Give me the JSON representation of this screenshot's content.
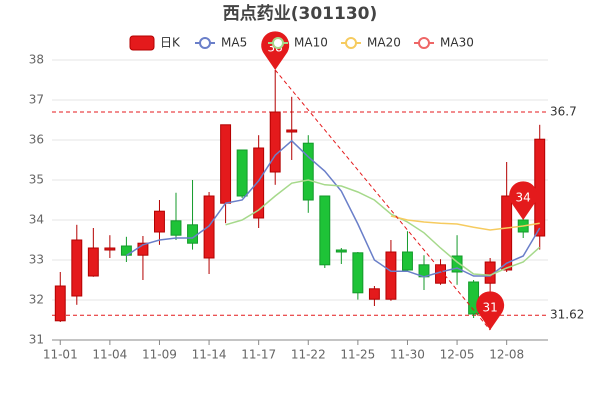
{
  "chart_data": {
    "type": "candlestick",
    "title": "西点药业(301130)",
    "categories": [
      "11-01",
      null,
      null,
      "11-04",
      null,
      null,
      "11-09",
      null,
      null,
      "11-14",
      null,
      null,
      "11-17",
      null,
      null,
      "11-22",
      null,
      null,
      "11-25",
      null,
      null,
      "11-30",
      null,
      null,
      "12-05",
      null,
      null,
      "12-08",
      null,
      null
    ],
    "candle_name": "日K",
    "up_color": "#e41a1c",
    "down_color": "#1ec337",
    "open": [
      31.48,
      32.1,
      32.6,
      33.25,
      33.35,
      33.12,
      33.7,
      33.98,
      33.88,
      33.05,
      34.42,
      35.75,
      34.05,
      35.2,
      36.2,
      35.92,
      34.6,
      33.25,
      33.18,
      32.02,
      32.02,
      33.2,
      32.88,
      32.42,
      33.1,
      32.45,
      32.42,
      32.75,
      34.0,
      33.6
    ],
    "high": [
      32.7,
      33.88,
      33.8,
      33.62,
      33.58,
      33.6,
      34.5,
      34.68,
      35.0,
      34.7,
      36.38,
      35.76,
      36.12,
      37.75,
      37.08,
      36.12,
      34.61,
      33.3,
      33.2,
      32.35,
      33.5,
      33.72,
      33.12,
      33.02,
      33.62,
      32.5,
      33.05,
      35.45,
      34.15,
      36.38
    ],
    "low": [
      31.45,
      31.88,
      32.58,
      33.05,
      32.95,
      32.5,
      33.38,
      33.5,
      33.26,
      32.65,
      33.92,
      34.55,
      33.8,
      34.88,
      35.5,
      34.18,
      32.8,
      32.9,
      32.01,
      31.85,
      31.98,
      32.7,
      32.25,
      32.38,
      32.38,
      31.55,
      31.25,
      32.7,
      33.55,
      33.26
    ],
    "close": [
      32.35,
      33.5,
      33.3,
      33.3,
      33.12,
      33.42,
      34.22,
      33.62,
      33.42,
      34.6,
      36.38,
      34.6,
      35.8,
      36.7,
      36.25,
      34.5,
      32.88,
      33.2,
      32.18,
      32.28,
      33.2,
      32.75,
      32.58,
      32.88,
      32.7,
      31.65,
      32.95,
      34.6,
      33.7,
      36.02
    ],
    "series": [
      {
        "name": "MA5",
        "color": "#6a7fc9",
        "values": [
          null,
          null,
          null,
          null,
          33.11,
          33.38,
          33.5,
          33.55,
          33.55,
          33.85,
          34.42,
          34.5,
          34.98,
          35.62,
          35.98,
          35.58,
          35.22,
          34.72,
          33.9,
          33.0,
          32.72,
          32.72,
          32.58,
          32.7,
          32.8,
          32.6,
          32.6,
          32.92,
          33.1,
          33.8
        ]
      },
      {
        "name": "MA10",
        "color": "#a6d98b",
        "values": [
          null,
          null,
          null,
          null,
          null,
          null,
          null,
          null,
          null,
          null,
          33.88,
          34.0,
          34.25,
          34.6,
          34.92,
          35.0,
          34.88,
          34.85,
          34.7,
          34.5,
          34.15,
          33.95,
          33.68,
          33.3,
          32.95,
          32.65,
          32.62,
          32.8,
          32.95,
          33.32
        ]
      },
      {
        "name": "MA20",
        "color": "#f6cb5f",
        "values": [
          null,
          null,
          null,
          null,
          null,
          null,
          null,
          null,
          null,
          null,
          null,
          null,
          null,
          null,
          null,
          null,
          null,
          null,
          null,
          null,
          34.1,
          34.0,
          33.95,
          33.92,
          33.9,
          33.82,
          33.75,
          33.8,
          33.85,
          33.92
        ]
      },
      {
        "name": "MA30",
        "color": "#ee6666",
        "values": [
          null,
          null,
          null,
          null,
          null,
          null,
          null,
          null,
          null,
          null,
          null,
          null,
          null,
          null,
          null,
          null,
          null,
          null,
          null,
          null,
          null,
          null,
          null,
          null,
          null,
          null,
          null,
          null,
          null,
          null
        ]
      }
    ],
    "ylim": [
      31,
      38
    ],
    "yticks": [
      31,
      32,
      33,
      34,
      35,
      36,
      37,
      38
    ],
    "grid": true,
    "mark_lines": [
      36.7,
      31.62
    ],
    "mark_points": [
      {
        "label": "38",
        "value": 37.75
      },
      {
        "label": "31",
        "value": 31.25
      },
      {
        "label": "34",
        "value": 34.0
      }
    ]
  }
}
